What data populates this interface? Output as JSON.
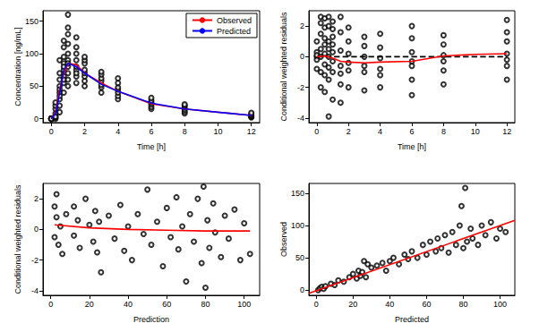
{
  "chart_data": [
    {
      "type": "scatter",
      "x_label": "Time [h]",
      "y_label": "Concentration [ng/mL]",
      "xlim": [
        -0.5,
        12.5
      ],
      "ylim": [
        -6,
        166
      ],
      "xticks": [
        0,
        2,
        4,
        6,
        8,
        10,
        12
      ],
      "yticks": [
        0,
        50,
        100,
        150
      ],
      "grid": false,
      "legend": "topright",
      "series": [
        {
          "type": "scatter",
          "marker": "open_circle",
          "color": "black",
          "x": [
            0,
            0,
            0,
            0,
            0,
            0,
            0,
            0,
            0.25,
            0.25,
            0.25,
            0.25,
            0.25,
            0.25,
            0.25,
            0.25,
            0.5,
            0.5,
            0.5,
            0.5,
            0.5,
            0.5,
            0.5,
            0.5,
            0.5,
            0.5,
            0.75,
            0.75,
            0.75,
            0.75,
            0.75,
            0.75,
            0.75,
            0.75,
            0.75,
            0.75,
            1,
            1,
            1,
            1,
            1,
            1,
            1,
            1,
            1,
            1,
            1,
            1.5,
            1.5,
            1.5,
            1.5,
            1.5,
            1.5,
            1.5,
            1.5,
            1.5,
            2,
            2,
            2,
            2,
            2,
            2,
            2,
            2,
            3,
            3,
            3,
            3,
            3,
            3,
            3,
            4,
            4,
            4,
            4,
            4,
            4,
            4,
            6,
            6,
            6,
            6,
            6,
            6,
            8,
            8,
            8,
            8,
            8,
            8,
            12,
            12,
            12,
            12,
            12,
            12
          ],
          "values": [
            0,
            0,
            0,
            0,
            0,
            0,
            0,
            0,
            0,
            2,
            5,
            8,
            15,
            20,
            25,
            3,
            10,
            20,
            30,
            40,
            50,
            60,
            70,
            90,
            35,
            45,
            40,
            55,
            65,
            75,
            85,
            95,
            110,
            120,
            60,
            80,
            50,
            60,
            70,
            80,
            90,
            100,
            115,
            130,
            160,
            140,
            85,
            55,
            65,
            75,
            80,
            90,
            100,
            110,
            125,
            70,
            50,
            58,
            65,
            70,
            75,
            85,
            90,
            95,
            40,
            48,
            52,
            58,
            62,
            68,
            72,
            30,
            35,
            40,
            45,
            48,
            55,
            62,
            15,
            18,
            22,
            25,
            28,
            32,
            8,
            11,
            14,
            17,
            20,
            22,
            2,
            3,
            4,
            5,
            7,
            9
          ]
        },
        {
          "type": "line",
          "name": "Observed",
          "color": "red",
          "line_style": "solid",
          "x": [
            0,
            0.25,
            0.5,
            0.75,
            1,
            1.5,
            2,
            3,
            4,
            6,
            8,
            12
          ],
          "values": [
            0,
            10,
            45,
            70,
            85,
            83,
            70,
            55,
            42,
            23,
            15,
            5
          ]
        },
        {
          "type": "line",
          "name": "Predicted",
          "color": "blue",
          "line_style": "solid",
          "x": [
            0,
            0.25,
            0.5,
            0.75,
            1,
            1.5,
            2,
            3,
            4,
            6,
            8,
            12
          ],
          "values": [
            0,
            8,
            40,
            75,
            85,
            80,
            70,
            53,
            42,
            24,
            15,
            5
          ]
        }
      ]
    },
    {
      "type": "scatter",
      "x_label": "Time [h]",
      "y_label": "Conditional weighted residuals",
      "xlim": [
        -0.5,
        12.5
      ],
      "ylim": [
        -4.3,
        3.0
      ],
      "xticks": [
        0,
        2,
        4,
        6,
        8,
        10,
        12
      ],
      "yticks": [
        -4,
        -2,
        0,
        2
      ],
      "grid": false,
      "series": [
        {
          "type": "scatter",
          "marker": "open_circle",
          "color": "black",
          "x": [
            0,
            0,
            0,
            0,
            0,
            0,
            0.25,
            0.25,
            0.25,
            0.25,
            0.25,
            0.25,
            0.25,
            0.5,
            0.5,
            0.5,
            0.5,
            0.5,
            0.5,
            0.5,
            0.5,
            0.75,
            0.75,
            0.75,
            0.75,
            0.75,
            0.75,
            0.75,
            0.75,
            1,
            1,
            1,
            1,
            1,
            1,
            1,
            1,
            1.5,
            1.5,
            1.5,
            1.5,
            1.5,
            1.5,
            1.5,
            2,
            2,
            2,
            2,
            2,
            2,
            3,
            3,
            3,
            3,
            3,
            3,
            4,
            4,
            4,
            4,
            4,
            4,
            6,
            6,
            6,
            6,
            6,
            6,
            6,
            8,
            8,
            8,
            8,
            8,
            8,
            12,
            12,
            12,
            12,
            12,
            12,
            12
          ],
          "values": [
            0,
            0.3,
            -0.2,
            1.0,
            -0.8,
            0.1,
            1.5,
            -1.0,
            0.5,
            2.2,
            -2.0,
            0.0,
            2.6,
            -1.2,
            0.8,
            1.9,
            -2.3,
            0.2,
            2.5,
            -0.5,
            1.2,
            -3.9,
            -1.5,
            0.0,
            1.0,
            2.0,
            -0.7,
            2.6,
            0.5,
            -2.8,
            -1.0,
            0.3,
            1.3,
            2.3,
            -0.3,
            0.8,
            1.8,
            -3.0,
            -1.8,
            -0.6,
            0.4,
            1.6,
            2.6,
            -1.1,
            -2.0,
            -0.9,
            0.2,
            1.0,
            1.9,
            -0.4,
            -2.2,
            -1.0,
            0.0,
            0.7,
            1.3,
            -0.6,
            -2.0,
            -0.8,
            -0.1,
            0.6,
            1.5,
            -1.2,
            -2.5,
            -1.5,
            -0.6,
            0.3,
            1.2,
            2.0,
            -0.3,
            -1.8,
            -0.9,
            0.1,
            0.8,
            1.4,
            -0.3,
            -1.5,
            -0.6,
            0.2,
            1.0,
            1.6,
            2.4,
            -0.2
          ]
        },
        {
          "type": "line",
          "color": "black",
          "line_style": "dashed",
          "x": [
            0,
            12
          ],
          "values": [
            0,
            0
          ]
        },
        {
          "type": "line",
          "color": "red",
          "line_style": "solid",
          "x": [
            0,
            0.5,
            1,
            1.5,
            2,
            3,
            4,
            6,
            8,
            10,
            12
          ],
          "values": [
            0,
            0.05,
            -0.1,
            -0.3,
            -0.35,
            -0.4,
            -0.35,
            -0.3,
            0.05,
            0.15,
            0.2
          ]
        }
      ]
    },
    {
      "type": "scatter",
      "x_label": "Prediction",
      "y_label": "Conditional weighted residuals",
      "xlim": [
        -4,
        108
      ],
      "ylim": [
        -4.3,
        3.0
      ],
      "xticks": [
        0,
        20,
        40,
        60,
        80,
        100
      ],
      "yticks": [
        -4,
        -2,
        0,
        2
      ],
      "grid": false,
      "series": [
        {
          "type": "scatter",
          "marker": "open_circle",
          "color": "black",
          "x": [
            2,
            2,
            3,
            3,
            4,
            5,
            6,
            8,
            12,
            12,
            14,
            15,
            18,
            20,
            22,
            23,
            24,
            25,
            26,
            30,
            33,
            36,
            38,
            40,
            42,
            45,
            48,
            50,
            52,
            55,
            58,
            60,
            62,
            65,
            66,
            68,
            70,
            72,
            74,
            76,
            78,
            79,
            80,
            81,
            82,
            84,
            85,
            88,
            90,
            92,
            95,
            98,
            100,
            103
          ],
          "values": [
            1.5,
            -0.5,
            2.3,
            0.8,
            -1.0,
            0.2,
            -1.6,
            1.0,
            1.5,
            -0.4,
            0.6,
            -1.2,
            2.0,
            0.3,
            -0.8,
            1.2,
            -1.5,
            0.5,
            -2.8,
            0.9,
            -0.6,
            1.6,
            -1.4,
            0.2,
            -2.0,
            1.0,
            -0.3,
            2.6,
            -1.0,
            0.5,
            -2.4,
            1.4,
            -0.5,
            2.1,
            -1.3,
            0.2,
            -3.4,
            1.0,
            -0.8,
            2.0,
            -2.2,
            2.8,
            -3.8,
            0.6,
            -1.2,
            1.7,
            -0.2,
            -1.8,
            0.9,
            -0.6,
            1.3,
            -2.0,
            0.4,
            -1.6
          ]
        },
        {
          "type": "line",
          "color": "red",
          "line_style": "solid",
          "x": [
            2,
            20,
            40,
            60,
            80,
            103
          ],
          "values": [
            0.3,
            0.1,
            0,
            -0.05,
            -0.1,
            -0.1
          ]
        }
      ]
    },
    {
      "type": "scatter",
      "x_label": "Predicted",
      "y_label": "Observed",
      "xlim": [
        -4,
        108
      ],
      "ylim": [
        -8,
        165
      ],
      "xticks": [
        0,
        20,
        40,
        60,
        80,
        100
      ],
      "yticks": [
        0,
        50,
        100,
        150
      ],
      "grid": false,
      "series": [
        {
          "type": "scatter",
          "marker": "open_circle",
          "color": "black",
          "x": [
            1,
            2,
            3,
            4,
            5,
            8,
            10,
            12,
            15,
            18,
            20,
            22,
            23,
            24,
            25,
            26,
            27,
            28,
            30,
            33,
            36,
            38,
            40,
            42,
            45,
            48,
            50,
            52,
            55,
            58,
            60,
            62,
            65,
            66,
            68,
            70,
            72,
            74,
            76,
            78,
            79,
            80,
            81,
            82,
            84,
            85,
            88,
            90,
            92,
            95,
            98,
            100,
            103
          ],
          "values": [
            0,
            3,
            5,
            2,
            6,
            10,
            8,
            15,
            13,
            20,
            25,
            18,
            30,
            22,
            28,
            45,
            20,
            40,
            35,
            38,
            42,
            30,
            45,
            50,
            40,
            55,
            48,
            60,
            50,
            70,
            55,
            75,
            60,
            80,
            65,
            85,
            58,
            90,
            70,
            100,
            130,
            65,
            158,
            75,
            95,
            80,
            70,
            100,
            85,
            105,
            80,
            95,
            90
          ]
        },
        {
          "type": "line",
          "color": "red",
          "line_style": "solid",
          "x": [
            -4,
            108
          ],
          "values": [
            -5,
            108
          ]
        }
      ]
    }
  ]
}
